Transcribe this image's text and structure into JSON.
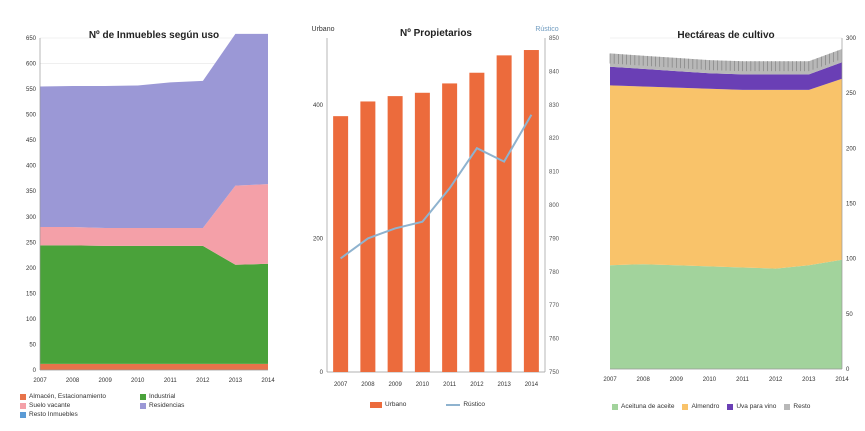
{
  "chart_data": [
    {
      "type": "area",
      "title": "Nº de Inmuebles según uso",
      "x": [
        "2007",
        "2008",
        "2009",
        "2010",
        "2011",
        "2012",
        "2013",
        "2014"
      ],
      "ylim": [
        0,
        650
      ],
      "yticks": [
        0,
        50,
        100,
        150,
        200,
        250,
        300,
        350,
        400,
        450,
        500,
        550,
        600,
        650
      ],
      "series": [
        {
          "name": "Almacén, Estacionamiento",
          "color": "#e8734a",
          "values": [
            12,
            12,
            12,
            12,
            12,
            12,
            12,
            12
          ]
        },
        {
          "name": "Industrial",
          "color": "#4aa23a",
          "values": [
            232,
            232,
            231,
            231,
            231,
            231,
            194,
            196
          ]
        },
        {
          "name": "Suelo vacante",
          "color": "#f4a0a8",
          "values": [
            36,
            36,
            35,
            35,
            35,
            35,
            155,
            156
          ]
        },
        {
          "name": "Residencias",
          "color": "#9b98d6",
          "values": [
            275,
            276,
            278,
            279,
            285,
            288,
            297,
            294
          ]
        },
        {
          "name": "Resto Inmuebles",
          "color": "#5b9bd5",
          "values": [
            0,
            0,
            0,
            0,
            0,
            0,
            0,
            0
          ]
        }
      ],
      "legend_position": "bottom"
    },
    {
      "type": "bar",
      "title": "Nº Propietarios",
      "ylabel": "Urbano",
      "y2label": "Rústico",
      "categories": [
        "2007",
        "2008",
        "2009",
        "2010",
        "2011",
        "2012",
        "2013",
        "2014"
      ],
      "ylim": [
        0,
        500
      ],
      "yticks": [
        0,
        200,
        400
      ],
      "y2lim": [
        750,
        850
      ],
      "y2ticks": [
        750,
        760,
        770,
        780,
        790,
        800,
        810,
        820,
        830,
        840,
        850
      ],
      "series": [
        {
          "name": "Urbano",
          "color": "#ec6b3c",
          "axis": "left",
          "kind": "bar",
          "values": [
            383,
            405,
            413,
            418,
            432,
            448,
            474,
            482
          ]
        },
        {
          "name": "Rústico",
          "color": "#8fb3cf",
          "axis": "right",
          "kind": "line",
          "values": [
            784,
            790,
            793,
            795,
            805,
            817,
            813,
            827
          ]
        }
      ],
      "legend_position": "bottom"
    },
    {
      "type": "area",
      "title": "Hectáreas de cultivo",
      "x": [
        "2007",
        "2008",
        "2009",
        "2010",
        "2011",
        "2012",
        "2013",
        "2014"
      ],
      "ylim": [
        0,
        300
      ],
      "yticks": [
        0,
        50,
        100,
        150,
        200,
        250,
        300
      ],
      "series": [
        {
          "name": "Aceituna de aceite",
          "color": "#a2d39c",
          "values": [
            94,
            95,
            94,
            93,
            92,
            91,
            94,
            99
          ]
        },
        {
          "name": "Almendro",
          "color": "#f9c36a",
          "values": [
            163,
            161,
            161,
            161,
            161,
            162,
            159,
            164
          ]
        },
        {
          "name": "Uva para vino",
          "color": "#6a3fb5",
          "values": [
            17,
            16,
            15,
            14,
            14,
            14,
            14,
            15
          ]
        },
        {
          "name": "Resto",
          "color": "#b8b8b8",
          "values": [
            12,
            12,
            12,
            12,
            12,
            12,
            12,
            12
          ]
        }
      ],
      "legend_position": "bottom"
    }
  ]
}
